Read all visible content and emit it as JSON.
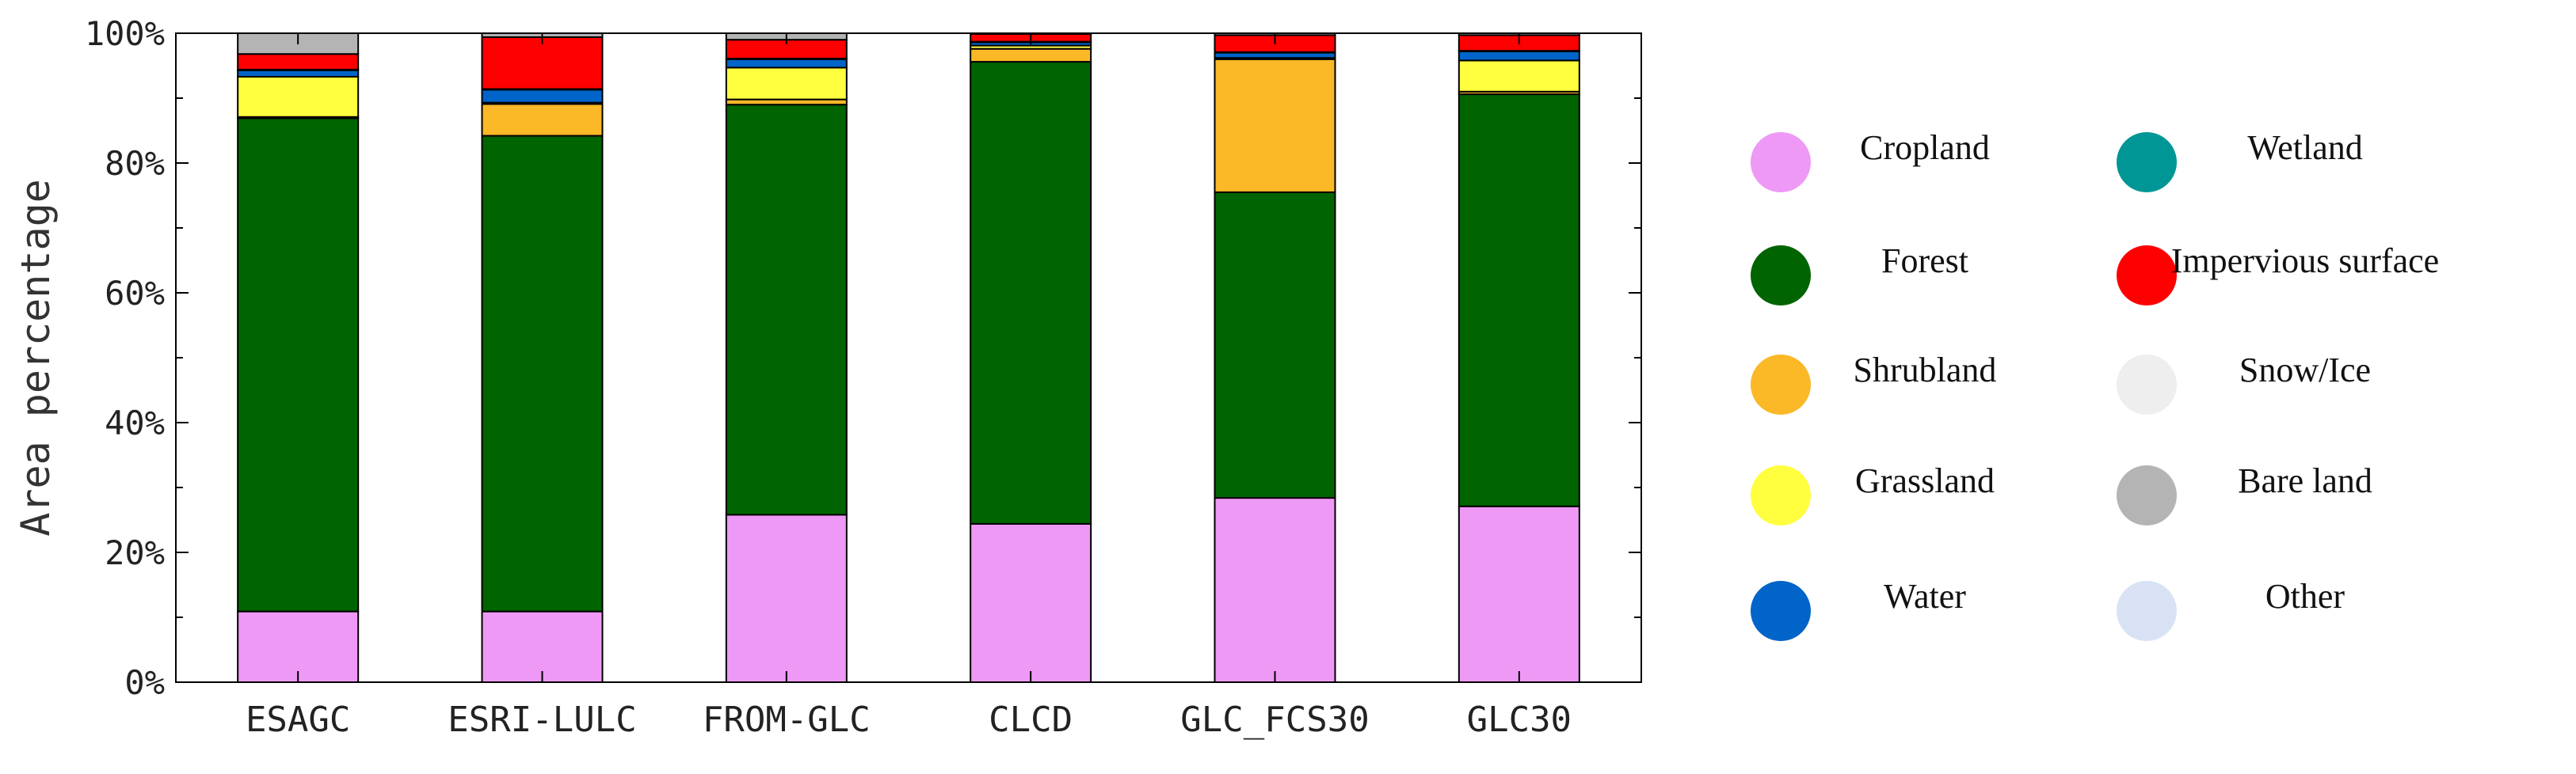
{
  "chart_data": {
    "type": "bar",
    "stacked": true,
    "title": "",
    "xlabel": "",
    "ylabel": "Area percentage",
    "ylim": [
      0,
      100
    ],
    "yticks": [
      "0%",
      "20%",
      "40%",
      "60%",
      "80%",
      "100%"
    ],
    "ytick_values": [
      0,
      20,
      40,
      60,
      80,
      100
    ],
    "categories": [
      "ESAGC",
      "ESRI-LULC",
      "FROM-GLC",
      "CLCD",
      "GLC_FCS30",
      "GLC30"
    ],
    "series": [
      {
        "name": "Cropland",
        "color": "#ee99f5",
        "values": [
          10.9,
          10.9,
          25.8,
          24.4,
          28.4,
          27.1
        ]
      },
      {
        "name": "Forest",
        "color": "#006400",
        "values": [
          76.0,
          73.3,
          63.2,
          71.2,
          47.1,
          63.5
        ]
      },
      {
        "name": "Shrubland",
        "color": "#fbb827",
        "values": [
          0.2,
          4.9,
          0.8,
          2.0,
          20.5,
          0.4
        ]
      },
      {
        "name": "Grassland",
        "color": "#ffff40",
        "values": [
          6.2,
          0.2,
          4.9,
          0.5,
          0.2,
          4.8
        ]
      },
      {
        "name": "Water",
        "color": "#0064c8",
        "values": [
          1.0,
          2.0,
          1.3,
          0.5,
          0.8,
          1.4
        ]
      },
      {
        "name": "Wetland",
        "color": "#009696",
        "values": [
          0.1,
          0.1,
          0.1,
          0.1,
          0.1,
          0.1
        ]
      },
      {
        "name": "Impervious surface",
        "color": "#ff0000",
        "values": [
          2.4,
          8.0,
          2.9,
          1.2,
          2.6,
          2.4
        ]
      },
      {
        "name": "Snow/Ice",
        "color": "#eeeeee",
        "values": [
          0.0,
          0.0,
          0.0,
          0.0,
          0.0,
          0.0
        ]
      },
      {
        "name": "Bare land",
        "color": "#b4b4b4",
        "values": [
          3.2,
          0.6,
          1.0,
          0.1,
          0.3,
          0.3
        ]
      },
      {
        "name": "Other",
        "color": "#d8e2f4",
        "values": [
          0.0,
          0.0,
          0.0,
          0.0,
          0.0,
          0.0
        ]
      }
    ],
    "legend": {
      "position": "right",
      "columns": 2,
      "items": [
        "Cropland",
        "Wetland",
        "Forest",
        "Impervious surface",
        "Shrubland",
        "Snow/Ice",
        "Grassland",
        "Bare land",
        "Water",
        "Other"
      ]
    }
  }
}
